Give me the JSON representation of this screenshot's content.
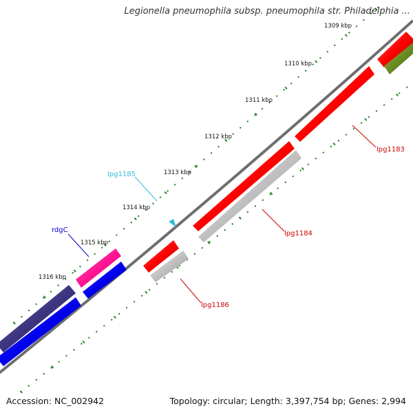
{
  "title": "Legionella pneumophila subsp. pneumophila str. Philadelphia ...",
  "footer": {
    "accession": "Accession: NC_002942",
    "summary": "Topology: circular; Length: 3,397,754 bp; Genes: 2,994"
  },
  "ticks": [
    "1309 kbp",
    "1310 kbp",
    "1311 kbp",
    "1312 kbp",
    "1313 kbp",
    "1314 kbp",
    "1315 kbp",
    "1316 kbp"
  ],
  "genes": [
    {
      "name": "lpg1183",
      "color": "#cc0000"
    },
    {
      "name": "lpg1184",
      "color": "#cc0000"
    },
    {
      "name": "lpg1185",
      "color": "#33bbdd"
    },
    {
      "name": "lpg1186",
      "color": "#cc0000"
    },
    {
      "name": "rdgC",
      "color": "#0000cc"
    }
  ],
  "colors": {
    "backbone": "#6e6e6e",
    "tick_marks": "#1a7a1a",
    "cds_red": "#ff0000",
    "rna_gray": "#bdbdbd",
    "olive": "#6b8e23",
    "pink": "#ff1493",
    "blue": "#0000ee",
    "navy": "#3d3580"
  }
}
